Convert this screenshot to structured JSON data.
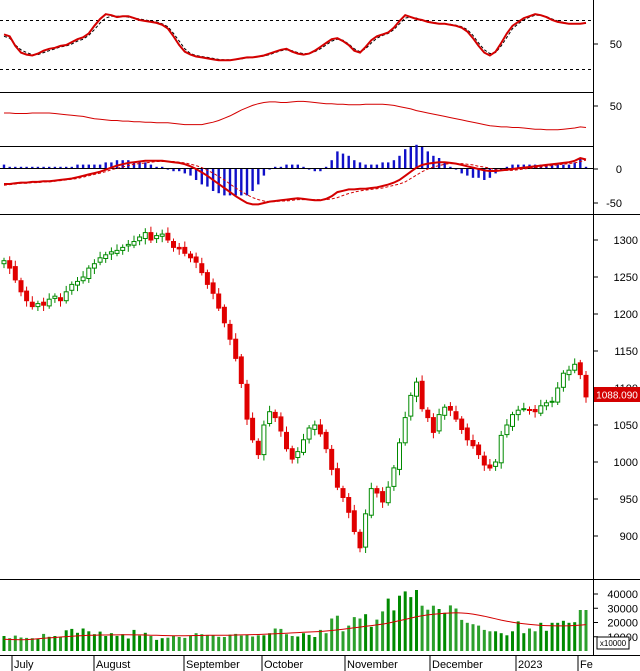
{
  "chart_data": {
    "type": "candlestick",
    "price_label": "1088.090",
    "volume_unit": "x10000",
    "months": [
      "July",
      "August",
      "September",
      "October",
      "November",
      "December",
      "2023",
      "Fe"
    ],
    "price_ticks": [
      1300,
      1250,
      1200,
      1150,
      1100,
      1050,
      1000,
      950,
      900
    ],
    "volume_ticks": [
      40000,
      30000,
      20000,
      10000
    ],
    "stoch_ticks": [
      50
    ],
    "rsi_ticks": [
      50
    ],
    "macd_ticks": [
      0,
      -50
    ],
    "closes": [
      1272,
      1262,
      1246,
      1230,
      1218,
      1210,
      1214,
      1212,
      1220,
      1224,
      1218,
      1230,
      1240,
      1244,
      1250,
      1262,
      1268,
      1276,
      1280,
      1284,
      1286,
      1290,
      1294,
      1298,
      1304,
      1310,
      1300,
      1306,
      1308,
      1300,
      1290,
      1288,
      1282,
      1276,
      1270,
      1256,
      1240,
      1228,
      1208,
      1188,
      1166,
      1140,
      1106,
      1058,
      1030,
      1010,
      1050,
      1068,
      1060,
      1042,
      1018,
      1004,
      1014,
      1030,
      1046,
      1050,
      1038,
      1018,
      990,
      966,
      952,
      932,
      906,
      884,
      930,
      964,
      958,
      946,
      966,
      992,
      1026,
      1060,
      1090,
      1108,
      1072,
      1060,
      1040,
      1064,
      1074,
      1070,
      1058,
      1044,
      1030,
      1022,
      1010,
      996,
      992,
      1000,
      1036,
      1050,
      1064,
      1070,
      1072,
      1070,
      1068,
      1076,
      1080,
      1082,
      1100,
      1120,
      1124,
      1132,
      1118,
      1088
    ],
    "volumes": [
      10500,
      9000,
      10800,
      9500,
      9200,
      9000,
      8800,
      12000,
      10000,
      10500,
      9800,
      14500,
      15500,
      12800,
      15800,
      13800,
      11800,
      13600,
      10500,
      12500,
      10600,
      11800,
      8800,
      14800,
      10800,
      12800,
      10500,
      7800,
      9000,
      9300,
      10500,
      9800,
      9200,
      10500,
      12500,
      11800,
      11000,
      11000,
      10000,
      9800,
      11500,
      12000,
      10800,
      11200,
      10200,
      11000,
      11000,
      12500,
      15800,
      15500,
      11800,
      10500,
      10200,
      12500,
      11300,
      9800,
      14800,
      12500,
      22800,
      24800,
      13800,
      17800,
      23800,
      22800,
      25800,
      17000,
      22000,
      27800,
      36800,
      28500,
      38800,
      41800,
      37800,
      42800,
      31800,
      29000,
      31800,
      29500,
      26800,
      32000,
      29800,
      21800,
      19800,
      18800,
      17800,
      14800,
      13800,
      13800,
      12500,
      11000,
      13800,
      20800,
      12500,
      15800,
      13800,
      19800,
      14200,
      19800,
      19800,
      21200,
      19800,
      20200,
      28800,
      28800
    ],
    "volume_ma": [
      8200,
      8100,
      8000,
      7900,
      8000,
      8300,
      8600,
      8900,
      9200,
      9500,
      9800,
      10100,
      10400,
      10600,
      10800,
      11000,
      11100,
      11200,
      11200,
      11300,
      11300,
      11400,
      11400,
      11300,
      11300,
      11200,
      11100,
      11000,
      10900,
      10800,
      10700,
      10700,
      10700,
      10800,
      10900,
      10900,
      11000,
      11000,
      11000,
      11000,
      11100,
      11200,
      11300,
      11400,
      11500,
      11600,
      11700,
      11900,
      12100,
      12300,
      12500,
      12700,
      12900,
      13100,
      13300,
      13500,
      13700,
      14000,
      14400,
      14800,
      15300,
      15800,
      16300,
      16800,
      17300,
      17800,
      18300,
      18900,
      19600,
      20400,
      21300,
      22200,
      23100,
      24000,
      24700,
      25300,
      25800,
      26200,
      26500,
      26700,
      26800,
      26700,
      26400,
      25900,
      25200,
      24400,
      23500,
      22600,
      21700,
      20900,
      20200,
      19600,
      19100,
      18700,
      18300,
      18000,
      17800,
      17700,
      17600,
      17600,
      17700,
      17900,
      18200,
      18500
    ],
    "stoch_k": [
      70,
      66,
      46,
      32,
      28,
      26,
      30,
      36,
      40,
      42,
      46,
      48,
      54,
      60,
      64,
      72,
      88,
      102,
      112,
      110,
      106,
      108,
      108,
      104,
      100,
      98,
      96,
      94,
      90,
      82,
      66,
      48,
      34,
      28,
      24,
      22,
      20,
      18,
      16,
      16,
      16,
      18,
      20,
      22,
      22,
      24,
      26,
      30,
      34,
      38,
      40,
      34,
      30,
      28,
      30,
      36,
      44,
      52,
      60,
      62,
      56,
      48,
      36,
      32,
      44,
      58,
      66,
      70,
      74,
      84,
      98,
      110,
      106,
      102,
      100,
      96,
      94,
      92,
      92,
      90,
      88,
      84,
      76,
      62,
      46,
      32,
      26,
      34,
      52,
      72,
      88,
      96,
      104,
      108,
      112,
      110,
      106,
      100,
      96,
      94,
      92,
      92,
      92,
      94
    ],
    "stoch_d": [
      66,
      62,
      48,
      38,
      32,
      28,
      28,
      32,
      36,
      40,
      44,
      46,
      50,
      56,
      60,
      68,
      80,
      94,
      104,
      108,
      108,
      108,
      106,
      104,
      102,
      100,
      98,
      96,
      92,
      86,
      72,
      56,
      40,
      30,
      26,
      24,
      22,
      20,
      18,
      17,
      17,
      18,
      19,
      21,
      22,
      23,
      25,
      28,
      32,
      36,
      38,
      36,
      32,
      30,
      30,
      34,
      40,
      48,
      56,
      60,
      58,
      50,
      40,
      34,
      40,
      52,
      62,
      68,
      72,
      80,
      92,
      104,
      106,
      104,
      100,
      97,
      95,
      93,
      92,
      91,
      89,
      86,
      80,
      68,
      52,
      38,
      30,
      32,
      46,
      64,
      82,
      92,
      100,
      106,
      110,
      110,
      107,
      102,
      98,
      95,
      93,
      92,
      92,
      93
    ],
    "rsi": [
      38,
      38,
      37,
      37,
      37,
      38,
      38,
      38,
      38,
      37,
      36,
      35,
      34,
      33,
      32,
      30,
      28,
      27,
      26,
      25,
      25,
      24,
      24,
      23,
      23,
      22,
      22,
      21,
      21,
      21,
      20,
      19,
      18,
      18,
      18,
      18,
      20,
      22,
      25,
      29,
      33,
      38,
      43,
      47,
      51,
      54,
      56,
      57,
      57,
      56,
      56,
      57,
      58,
      58,
      57,
      56,
      55,
      54,
      54,
      53,
      53,
      52,
      52,
      52,
      53,
      53,
      53,
      53,
      52,
      51,
      49,
      47,
      45,
      42,
      40,
      38,
      36,
      34,
      32,
      30,
      28,
      26,
      24,
      22,
      20,
      18,
      16,
      15,
      14,
      14,
      13,
      13,
      12,
      11,
      10,
      10,
      9,
      9,
      9,
      10,
      11,
      12,
      14,
      13
    ],
    "macd": [
      -22,
      -22,
      -21,
      -20,
      -20,
      -19,
      -19,
      -18,
      -18,
      -17,
      -16,
      -15,
      -14,
      -12,
      -10,
      -8,
      -6,
      -4,
      -1,
      2,
      5,
      7,
      9,
      10,
      11,
      12,
      12,
      12,
      12,
      11,
      10,
      9,
      7,
      4,
      0,
      -5,
      -10,
      -16,
      -22,
      -28,
      -34,
      -40,
      -45,
      -50,
      -52,
      -52,
      -50,
      -48,
      -47,
      -46,
      -45,
      -44,
      -43,
      -44,
      -45,
      -46,
      -46,
      -44,
      -40,
      -34,
      -32,
      -30,
      -30,
      -29,
      -29,
      -28,
      -27,
      -25,
      -23,
      -20,
      -16,
      -10,
      -4,
      2,
      6,
      8,
      9,
      10,
      10,
      9,
      8,
      6,
      4,
      2,
      0,
      -2,
      -3,
      -3,
      -2,
      -1,
      0,
      1,
      2,
      3,
      4,
      5,
      6,
      7,
      8,
      9,
      10,
      12,
      16,
      14
    ],
    "macd_signal": [
      -24,
      -23,
      -22,
      -21,
      -21,
      -20,
      -20,
      -19,
      -19,
      -18,
      -17,
      -16,
      -15,
      -14,
      -12,
      -10,
      -8,
      -6,
      -4,
      -1,
      1,
      3,
      5,
      7,
      8,
      9,
      10,
      11,
      11,
      11,
      11,
      10,
      9,
      7,
      5,
      2,
      -2,
      -6,
      -11,
      -16,
      -22,
      -28,
      -33,
      -38,
      -42,
      -45,
      -47,
      -48,
      -48,
      -47,
      -47,
      -46,
      -45,
      -45,
      -45,
      -45,
      -45,
      -45,
      -44,
      -42,
      -39,
      -36,
      -34,
      -32,
      -31,
      -30,
      -29,
      -28,
      -26,
      -24,
      -22,
      -19,
      -14,
      -9,
      -4,
      0,
      3,
      5,
      7,
      8,
      8,
      8,
      7,
      6,
      4,
      3,
      1,
      -1,
      -2,
      -2,
      -2,
      -1,
      0,
      1,
      2,
      3,
      4,
      5,
      6,
      7,
      8,
      9,
      11,
      13
    ]
  }
}
